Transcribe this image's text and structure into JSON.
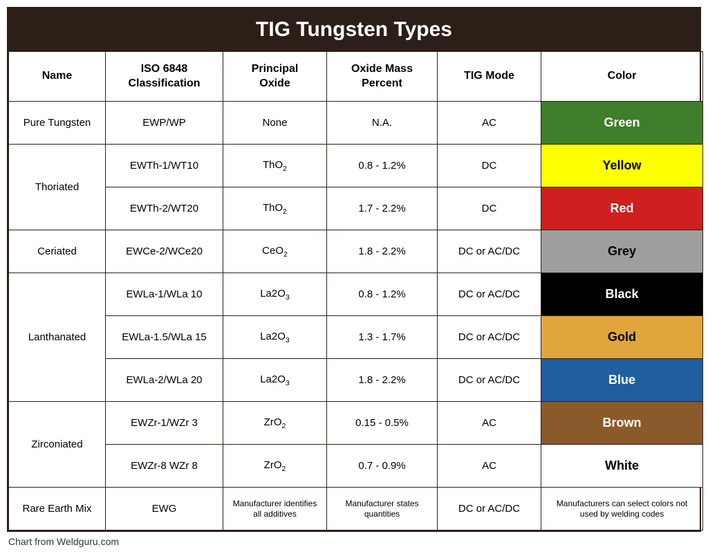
{
  "title": "TIG Tungsten Types",
  "caption": "Chart from Weldguru.com",
  "columns": [
    "Name",
    "ISO 6848 Classification",
    "Principal Oxide",
    "Oxide Mass Percent",
    "TIG Mode",
    "Color"
  ],
  "colors": {
    "header_bg": "#2c1f17",
    "border": "#2c1f17",
    "swatches": {
      "green": {
        "bg": "#3f7e2b",
        "fg": "#ffffff"
      },
      "yellow": {
        "bg": "#ffff00",
        "fg": "#000000"
      },
      "red": {
        "bg": "#d01f1f",
        "fg": "#ffffff"
      },
      "grey": {
        "bg": "#9e9e9e",
        "fg": "#000000"
      },
      "black": {
        "bg": "#000000",
        "fg": "#ffffff"
      },
      "gold": {
        "bg": "#e0a63b",
        "fg": "#000000"
      },
      "blue": {
        "bg": "#1f5fa0",
        "fg": "#ffffff"
      },
      "brown": {
        "bg": "#8b5a2b",
        "fg": "#ffffff"
      },
      "white": {
        "bg": "#ffffff",
        "fg": "#000000"
      }
    }
  },
  "rows": [
    {
      "name": "Pure Tungsten",
      "name_rowspan": 1,
      "iso": "EWP/WP",
      "oxide": "None",
      "mass": "N.A.",
      "mode": "AC",
      "color_label": "Green",
      "swatch": "green"
    },
    {
      "name": "Thoriated",
      "name_rowspan": 2,
      "iso": "EWTh-1/WT10",
      "oxide_html": "ThO<sub>2</sub>",
      "mass": "0.8 - 1.2%",
      "mode": "DC",
      "color_label": "Yellow",
      "swatch": "yellow"
    },
    {
      "iso": "EWTh-2/WT20",
      "oxide_html": "ThO<sub>2</sub>",
      "mass": "1.7 - 2.2%",
      "mode": "DC",
      "color_label": "Red",
      "swatch": "red"
    },
    {
      "name": "Ceriated",
      "name_rowspan": 1,
      "iso": "EWCe-2/WCe20",
      "oxide_html": "CeO<sub>2</sub>",
      "mass": "1.8 - 2.2%",
      "mode": "DC or AC/DC",
      "color_label": "Grey",
      "swatch": "grey"
    },
    {
      "name": "Lanthanated",
      "name_rowspan": 3,
      "iso": "EWLa-1/WLa 10",
      "oxide_html": "La2O<sub>3</sub>",
      "mass": "0.8 - 1.2%",
      "mode": "DC or AC/DC",
      "color_label": "Black",
      "swatch": "black"
    },
    {
      "iso": "EWLa-1.5/WLa 15",
      "oxide_html": "La2O<sub>3</sub>",
      "mass": "1.3 - 1.7%",
      "mode": "DC or AC/DC",
      "color_label": "Gold",
      "swatch": "gold"
    },
    {
      "iso": "EWLa-2/WLa 20",
      "oxide_html": "La2O<sub>3</sub>",
      "mass": "1.8 - 2.2%",
      "mode": "DC or AC/DC",
      "color_label": "Blue",
      "swatch": "blue"
    },
    {
      "name": "Zirconiated",
      "name_rowspan": 2,
      "iso": "EWZr-1/WZr 3",
      "oxide_html": "ZrO<sub>2</sub>",
      "mass": "0.15 - 0.5%",
      "mode": "AC",
      "color_label": "Brown",
      "swatch": "brown"
    },
    {
      "iso": "EWZr-8 WZr 8",
      "oxide_html": "ZrO<sub>2</sub>",
      "mass": "0.7 - 0.9%",
      "mode": "AC",
      "color_label": "White",
      "swatch": "white"
    },
    {
      "name": "Rare Earth Mix",
      "name_rowspan": 1,
      "iso": "EWG",
      "oxide": "Manufacturer identifies all additives",
      "oxide_small": true,
      "mass": "Manufacturer states quantities",
      "mass_small": true,
      "mode": "DC or AC/DC",
      "color_label": "Manufacturers can select colors not used by welding codes",
      "color_small": true,
      "swatch": null
    }
  ]
}
